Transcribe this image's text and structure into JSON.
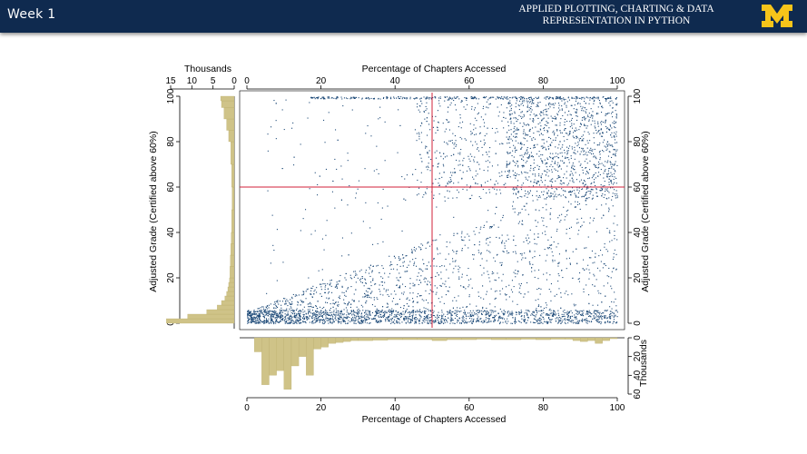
{
  "header": {
    "week_label": "Week 1",
    "course_title_line1": "APPLIED PLOTTING, CHARTING & DATA",
    "course_title_line2": "REPRESENTATION IN PYTHON",
    "logo_letter": "M",
    "colors": {
      "bar": "#0f2a4f",
      "logo": "#f6c41a",
      "text": "#ffffff"
    }
  },
  "chart_data": {
    "type": "scatter",
    "title": "",
    "top_xlabel": "Percentage of Chapters Accessed",
    "xlabel": "Percentage of Chapters Accessed",
    "left_ylabel": "Adjusted Grade (Certified above 60%)",
    "right_ylabel": "Adjusted Grade (Certified above 60%)",
    "xlim": [
      0,
      100
    ],
    "ylim": [
      0,
      100
    ],
    "x_ticks": [
      "0",
      "20",
      "40",
      "60",
      "80",
      "100"
    ],
    "y_ticks": [
      "0",
      "20",
      "40",
      "60",
      "80",
      "100"
    ],
    "reference_lines": {
      "x": 50,
      "y": 60,
      "color": "#d0203a"
    },
    "point_color": "#1d4a78",
    "marginal_color": "#cfc388",
    "left_histogram": {
      "axis_label": "Thousands",
      "ticks": [
        "15",
        "10",
        "5",
        "0"
      ],
      "xlim": [
        15,
        0
      ],
      "bins_y": [
        0,
        2,
        4,
        6,
        8,
        10,
        12,
        14,
        16,
        18,
        20,
        25,
        30,
        35,
        40,
        50,
        60,
        70,
        80,
        85,
        90,
        95,
        98
      ],
      "counts_thousands": [
        16,
        11,
        6.5,
        4,
        3,
        2.2,
        1.8,
        1.5,
        1.3,
        1.1,
        1,
        0.9,
        0.8,
        0.7,
        0.6,
        0.5,
        0.6,
        0.8,
        1.3,
        1.8,
        2.4,
        3.0,
        3.2
      ]
    },
    "bottom_histogram": {
      "axis_label": "Thousands",
      "ticks": [
        "0",
        "20",
        "40",
        "60"
      ],
      "ylim": [
        0,
        60
      ],
      "bins_x": [
        2,
        4,
        6,
        8,
        10,
        12,
        14,
        16,
        18,
        20,
        22,
        24,
        26,
        28,
        30,
        34,
        38,
        42,
        46,
        50,
        54,
        58,
        62,
        66,
        70,
        74,
        78,
        82,
        86,
        88,
        90,
        92,
        94,
        96,
        98
      ],
      "counts_thousands": [
        15,
        50,
        40,
        35,
        55,
        30,
        20,
        40,
        12,
        10,
        6,
        5,
        4,
        3,
        3,
        2.5,
        2,
        2,
        2,
        3,
        2,
        2,
        1.5,
        2,
        2,
        1.5,
        2,
        1.5,
        1.5,
        3,
        4,
        3,
        6,
        3,
        1
      ]
    }
  }
}
